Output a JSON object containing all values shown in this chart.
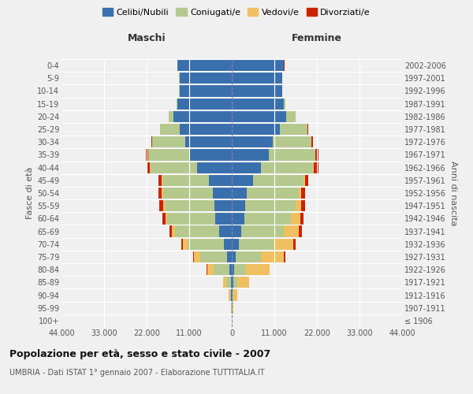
{
  "age_groups": [
    "100+",
    "95-99",
    "90-94",
    "85-89",
    "80-84",
    "75-79",
    "70-74",
    "65-69",
    "60-64",
    "55-59",
    "50-54",
    "45-49",
    "40-44",
    "35-39",
    "30-34",
    "25-29",
    "20-24",
    "15-19",
    "10-14",
    "5-9",
    "0-4"
  ],
  "birth_years": [
    "≤ 1906",
    "1907-1911",
    "1912-1916",
    "1917-1921",
    "1922-1926",
    "1927-1931",
    "1932-1936",
    "1937-1941",
    "1942-1946",
    "1947-1951",
    "1952-1956",
    "1957-1961",
    "1962-1966",
    "1967-1971",
    "1972-1976",
    "1977-1981",
    "1982-1986",
    "1987-1991",
    "1992-1996",
    "1997-2001",
    "2002-2006"
  ],
  "colors": {
    "celibi": "#3a6fad",
    "coniugati": "#b5c98e",
    "vedovi": "#f0c060",
    "divorziati": "#cc2200"
  },
  "males": {
    "celibi": [
      50,
      80,
      150,
      300,
      600,
      1200,
      2000,
      3200,
      4200,
      4400,
      4800,
      6000,
      9000,
      11000,
      12000,
      13500,
      15000,
      14000,
      13500,
      13500,
      14000
    ],
    "coniugati": [
      20,
      60,
      300,
      1200,
      4000,
      7000,
      9500,
      11500,
      12500,
      13000,
      13000,
      12000,
      12000,
      10500,
      8500,
      5000,
      1200,
      200,
      100,
      50,
      30
    ],
    "vedovi": [
      10,
      80,
      300,
      700,
      1800,
      1500,
      1200,
      800,
      500,
      400,
      250,
      150,
      100,
      80,
      50,
      20,
      30,
      10,
      10,
      10,
      10
    ],
    "divorziati": [
      5,
      10,
      20,
      50,
      80,
      200,
      400,
      600,
      700,
      900,
      800,
      700,
      900,
      600,
      300,
      100,
      50,
      20,
      10,
      10,
      10
    ]
  },
  "females": {
    "celibi": [
      50,
      100,
      250,
      500,
      700,
      1000,
      1800,
      2500,
      3200,
      3500,
      3800,
      5500,
      7500,
      9500,
      10500,
      12500,
      14000,
      13500,
      13000,
      13000,
      13500
    ],
    "coniugati": [
      10,
      40,
      200,
      900,
      3000,
      6500,
      9000,
      11000,
      12000,
      13000,
      13500,
      13000,
      13500,
      12000,
      10000,
      7000,
      2500,
      400,
      100,
      50,
      30
    ],
    "vedovi": [
      20,
      200,
      1000,
      3000,
      6000,
      6000,
      5000,
      3800,
      2500,
      1500,
      700,
      400,
      200,
      150,
      100,
      50,
      40,
      20,
      10,
      10,
      10
    ],
    "divorziati": [
      5,
      10,
      20,
      50,
      100,
      300,
      600,
      800,
      900,
      1000,
      1000,
      900,
      1200,
      700,
      400,
      150,
      60,
      20,
      10,
      10,
      10
    ]
  },
  "title": "Popolazione per età, sesso e stato civile - 2007",
  "subtitle": "UMBRIA - Dati ISTAT 1° gennaio 2007 - Elaborazione TUTTITALIA.IT",
  "xlabel_left": "Maschi",
  "xlabel_right": "Femmine",
  "ylabel_left": "Fasce di età",
  "ylabel_right": "Anni di nascita",
  "xlim": 44000,
  "xtick_labels": [
    "44.000",
    "33.000",
    "22.000",
    "11.000",
    "0",
    "11.000",
    "22.000",
    "33.000",
    "44.000"
  ],
  "legend_labels": [
    "Celibi/Nubili",
    "Coniugati/e",
    "Vedovi/e",
    "Divorziati/e"
  ],
  "background_color": "#f0f0f0"
}
